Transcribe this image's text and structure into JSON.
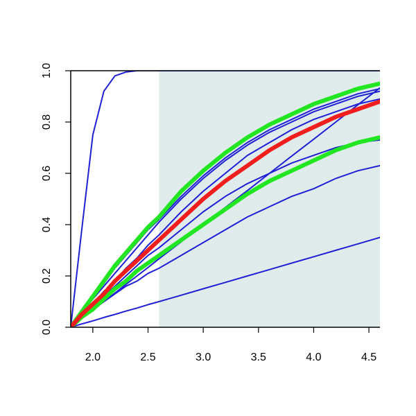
{
  "chart_data": {
    "type": "line",
    "title": "",
    "xlabel": "",
    "ylabel": "",
    "xlim": [
      1.8,
      4.6
    ],
    "ylim": [
      0,
      1
    ],
    "x_ticks": [
      2.0,
      2.5,
      3.0,
      3.5,
      4.0,
      4.5
    ],
    "x_tick_labels": [
      "2.0",
      "2.5",
      "3.0",
      "3.5",
      "4.0",
      "4.5"
    ],
    "y_ticks": [
      0.0,
      0.2,
      0.4,
      0.6,
      0.8,
      1.0
    ],
    "y_tick_labels": [
      "0.0",
      "0.2",
      "0.4",
      "0.6",
      "0.8",
      "1.0"
    ],
    "grid": false,
    "shaded_region": {
      "x_from": 2.6,
      "x_to": 4.6,
      "color": "#dfeceb"
    },
    "colors": {
      "blue": "#1f1fd6",
      "green": "#22e622",
      "red": "#f21d1d",
      "axis": "#000000"
    },
    "x": [
      1.8,
      1.9,
      2.0,
      2.1,
      2.2,
      2.3,
      2.4,
      2.5,
      2.6,
      2.8,
      3.0,
      3.2,
      3.4,
      3.6,
      3.8,
      4.0,
      4.2,
      4.4,
      4.6
    ],
    "series": [
      {
        "color": "blue",
        "width": 2,
        "values": [
          0.0,
          0.38,
          0.75,
          0.92,
          0.98,
          0.995,
          1.0,
          1.0,
          1.0,
          1.0,
          1.0,
          1.0,
          1.0,
          1.0,
          1.0,
          1.0,
          1.0,
          1.0,
          1.0
        ]
      },
      {
        "color": "blue",
        "width": 2,
        "values": [
          0.0,
          0.04,
          0.07,
          0.1,
          0.13,
          0.16,
          0.18,
          0.21,
          0.23,
          0.28,
          0.33,
          0.38,
          0.43,
          0.47,
          0.51,
          0.54,
          0.58,
          0.61,
          0.63
        ]
      },
      {
        "color": "blue",
        "width": 2,
        "values": [
          0.0,
          0.04,
          0.08,
          0.12,
          0.16,
          0.2,
          0.24,
          0.28,
          0.31,
          0.38,
          0.45,
          0.51,
          0.56,
          0.6,
          0.64,
          0.67,
          0.7,
          0.72,
          0.73
        ]
      },
      {
        "color": "blue",
        "width": 2,
        "values": [
          0.0,
          0.05,
          0.09,
          0.14,
          0.18,
          0.23,
          0.27,
          0.32,
          0.36,
          0.45,
          0.53,
          0.6,
          0.67,
          0.72,
          0.77,
          0.81,
          0.84,
          0.87,
          0.89
        ]
      },
      {
        "color": "blue",
        "width": 2,
        "values": [
          0.0,
          0.06,
          0.11,
          0.16,
          0.21,
          0.26,
          0.31,
          0.36,
          0.41,
          0.5,
          0.58,
          0.65,
          0.71,
          0.76,
          0.8,
          0.84,
          0.87,
          0.9,
          0.92
        ]
      },
      {
        "color": "blue",
        "width": 2,
        "values": [
          0.0,
          0.06,
          0.12,
          0.17,
          0.23,
          0.28,
          0.33,
          0.38,
          0.42,
          0.51,
          0.59,
          0.66,
          0.72,
          0.77,
          0.81,
          0.85,
          0.88,
          0.91,
          0.93
        ]
      },
      {
        "color": "blue",
        "width": 2,
        "values": [
          0.0,
          0.034,
          0.067,
          0.1,
          0.133,
          0.167,
          0.2,
          0.233,
          0.267,
          0.333,
          0.4,
          0.467,
          0.533,
          0.6,
          0.667,
          0.733,
          0.8,
          0.867,
          0.933
        ]
      },
      {
        "color": "blue",
        "width": 2,
        "values": [
          0.0,
          0.013,
          0.025,
          0.038,
          0.05,
          0.063,
          0.075,
          0.088,
          0.1,
          0.125,
          0.15,
          0.175,
          0.2,
          0.225,
          0.25,
          0.275,
          0.3,
          0.325,
          0.35
        ]
      },
      {
        "color": "green",
        "width": 6,
        "values": [
          0.0,
          0.06,
          0.12,
          0.18,
          0.24,
          0.29,
          0.34,
          0.39,
          0.43,
          0.53,
          0.61,
          0.68,
          0.74,
          0.79,
          0.83,
          0.87,
          0.9,
          0.93,
          0.95
        ]
      },
      {
        "color": "green",
        "width": 6,
        "values": [
          0.0,
          0.04,
          0.07,
          0.11,
          0.15,
          0.18,
          0.22,
          0.25,
          0.28,
          0.34,
          0.4,
          0.46,
          0.52,
          0.57,
          0.61,
          0.65,
          0.69,
          0.72,
          0.74
        ]
      },
      {
        "color": "red",
        "width": 6,
        "values": [
          0.0,
          0.05,
          0.09,
          0.13,
          0.18,
          0.22,
          0.26,
          0.3,
          0.34,
          0.42,
          0.5,
          0.57,
          0.63,
          0.69,
          0.74,
          0.78,
          0.82,
          0.85,
          0.88
        ]
      }
    ]
  }
}
